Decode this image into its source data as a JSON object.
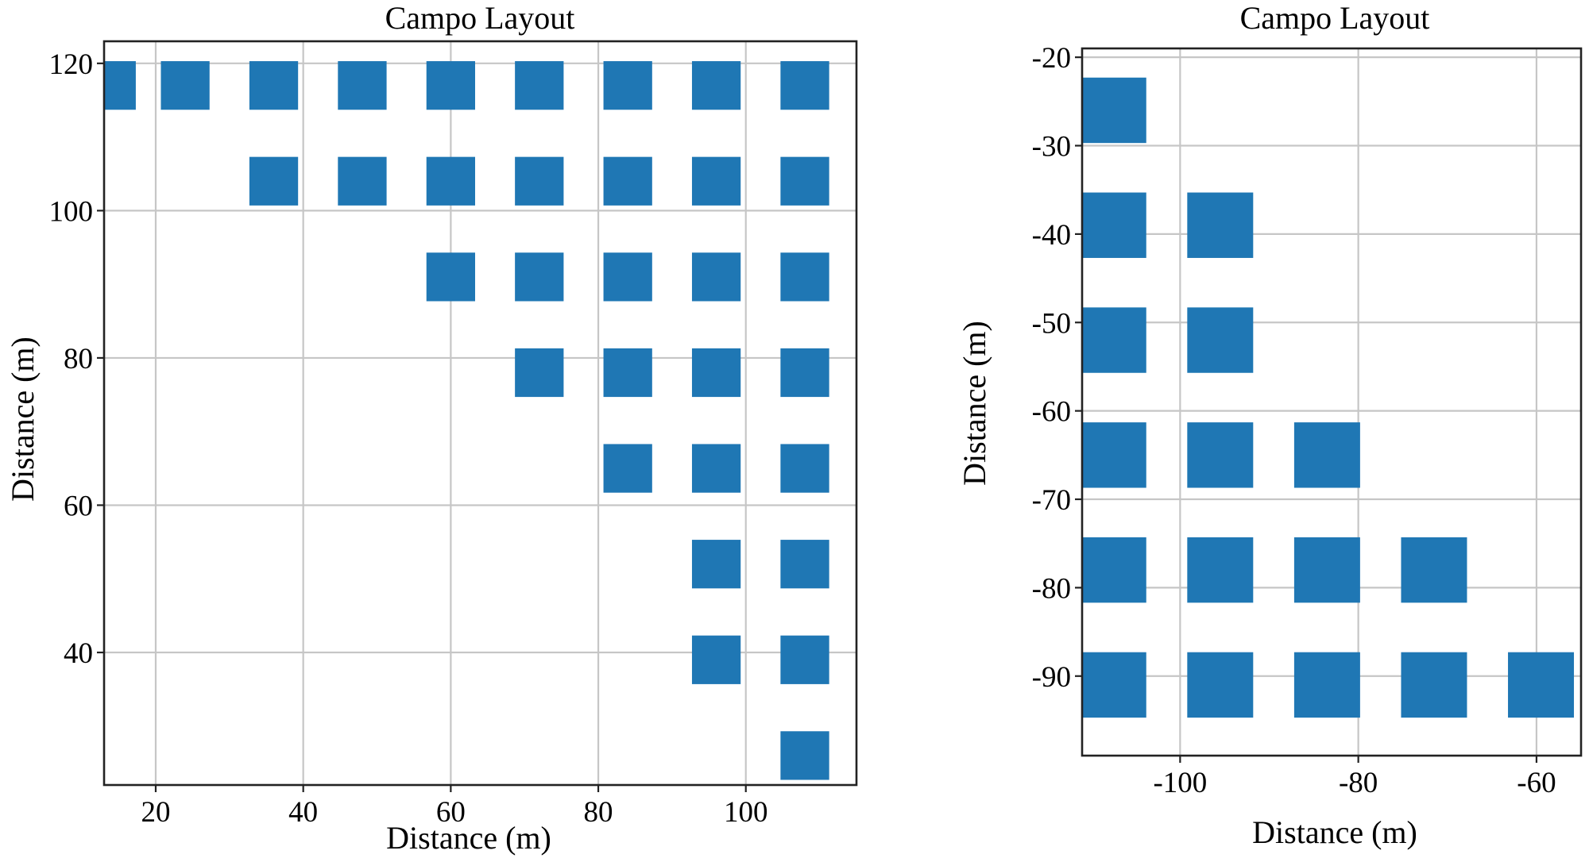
{
  "chart_data": [
    {
      "type": "scatter",
      "marker": "square",
      "title": "Campo Layout",
      "xlabel": "Distance (m)",
      "ylabel": "Distance (m)",
      "xlim": [
        13,
        115
      ],
      "ylim": [
        22,
        123
      ],
      "xticks": [
        20,
        40,
        60,
        80,
        100
      ],
      "yticks": [
        40,
        60,
        80,
        100,
        120
      ],
      "grid": true,
      "marker_color": "#1f77b4",
      "marker_size_data": [
        6.6,
        6.6
      ],
      "points": [
        [
          14,
          117
        ],
        [
          24,
          117
        ],
        [
          36,
          117
        ],
        [
          48,
          117
        ],
        [
          60,
          117
        ],
        [
          72,
          117
        ],
        [
          84,
          117
        ],
        [
          96,
          117
        ],
        [
          108,
          117
        ],
        [
          36,
          104
        ],
        [
          48,
          104
        ],
        [
          60,
          104
        ],
        [
          72,
          104
        ],
        [
          84,
          104
        ],
        [
          96,
          104
        ],
        [
          108,
          104
        ],
        [
          60,
          91
        ],
        [
          72,
          91
        ],
        [
          84,
          91
        ],
        [
          96,
          91
        ],
        [
          108,
          91
        ],
        [
          72,
          78
        ],
        [
          84,
          78
        ],
        [
          96,
          78
        ],
        [
          108,
          78
        ],
        [
          84,
          65
        ],
        [
          96,
          65
        ],
        [
          108,
          65
        ],
        [
          96,
          52
        ],
        [
          108,
          52
        ],
        [
          96,
          39
        ],
        [
          108,
          39
        ],
        [
          108,
          26
        ]
      ]
    },
    {
      "type": "scatter",
      "marker": "square",
      "title": "Campo Layout",
      "xlabel": "Distance (m)",
      "ylabel": "Distance (m)",
      "xlim": [
        -111,
        -55
      ],
      "ylim": [
        -99,
        -19
      ],
      "xticks": [
        -100,
        -80,
        -60
      ],
      "yticks": [
        -20,
        -30,
        -40,
        -50,
        -60,
        -70,
        -80,
        -90
      ],
      "grid": true,
      "marker_color": "#1f77b4",
      "marker_size_data": [
        7.4,
        7.4
      ],
      "points": [
        [
          -107.5,
          -26
        ],
        [
          -107.5,
          -39
        ],
        [
          -95.5,
          -39
        ],
        [
          -107.5,
          -52
        ],
        [
          -95.5,
          -52
        ],
        [
          -107.5,
          -65
        ],
        [
          -95.5,
          -65
        ],
        [
          -83.5,
          -65
        ],
        [
          -107.5,
          -78
        ],
        [
          -95.5,
          -78
        ],
        [
          -83.5,
          -78
        ],
        [
          -71.5,
          -78
        ],
        [
          -107.5,
          -91
        ],
        [
          -95.5,
          -91
        ],
        [
          -83.5,
          -91
        ],
        [
          -71.5,
          -91
        ],
        [
          -59.5,
          -91
        ]
      ]
    }
  ]
}
